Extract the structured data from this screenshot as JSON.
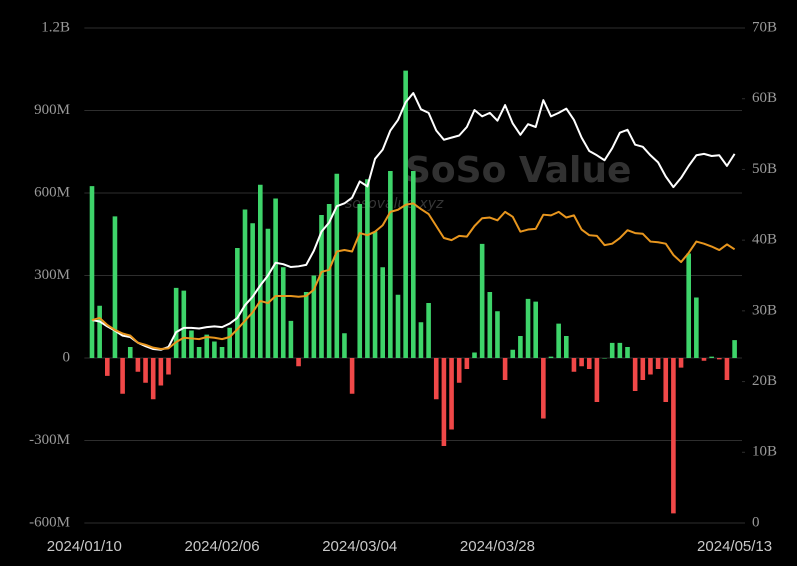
{
  "chart_data": {
    "type": "bar",
    "watermark": "SoSo Value",
    "watermark_subtitle": "sosovalue.xyz",
    "categories": [
      "2024/01/10",
      null,
      null,
      null,
      null,
      null,
      null,
      null,
      null,
      null,
      null,
      null,
      null,
      null,
      null,
      null,
      null,
      null,
      "2024/02/06",
      null,
      null,
      null,
      null,
      null,
      null,
      null,
      null,
      null,
      null,
      null,
      null,
      null,
      null,
      null,
      null,
      null,
      "2024/03/04",
      null,
      null,
      null,
      null,
      null,
      null,
      null,
      null,
      null,
      null,
      null,
      null,
      null,
      null,
      null,
      null,
      null,
      "2024/03/28",
      null,
      null,
      null,
      null,
      null,
      null,
      null,
      null,
      null,
      null,
      null,
      null,
      null,
      null,
      null,
      null,
      null,
      null,
      null,
      null,
      null,
      null,
      null,
      null,
      null,
      null,
      null,
      null,
      null,
      null,
      "2024/05/13"
    ],
    "series": [
      {
        "type": "bar",
        "color": "#3ed46a",
        "negative_color": "#f04848",
        "values": [
          null,
          625,
          190,
          -65,
          515,
          -130,
          40,
          -50,
          -90,
          -150,
          -100,
          -60,
          255,
          245,
          100,
          40,
          85,
          60,
          40,
          110,
          400,
          540,
          490,
          630,
          470,
          580,
          330,
          135,
          -30,
          240,
          300,
          520,
          560,
          670,
          90,
          -130,
          560,
          650,
          460,
          330,
          680,
          230,
          1045,
          680,
          130,
          200,
          -150,
          -320,
          -260,
          -90,
          -40,
          20,
          415,
          240,
          170,
          -80,
          30,
          80,
          215,
          205,
          -220,
          5,
          125,
          80,
          -50,
          -30,
          -40,
          -160,
          0,
          55,
          55,
          40,
          -120,
          -80,
          -60,
          -40,
          -160,
          -565,
          -35,
          380,
          220,
          -10,
          5,
          -5,
          -80,
          65
        ]
      },
      {
        "type": "line",
        "axis": "y2",
        "color": "#ffffff",
        "values": [
          null,
          28.7,
          28.5,
          27.8,
          27.2,
          26.5,
          26.3,
          25.5,
          25.0,
          24.6,
          24.5,
          24.9,
          27.0,
          27.6,
          27.6,
          27.5,
          27.7,
          27.8,
          27.7,
          28.2,
          29.0,
          30.8,
          32.0,
          33.6,
          35.0,
          36.8,
          36.6,
          36.2,
          36.3,
          36.5,
          38.5,
          41.2,
          42.5,
          44.8,
          45.2,
          46.0,
          48.3,
          47.6,
          51.5,
          52.8,
          55.5,
          57.0,
          59.5,
          60.8,
          58.5,
          58.0,
          55.5,
          54.2,
          54.5,
          54.8,
          56.0,
          58.4,
          57.5,
          58.0,
          56.9,
          59.1,
          56.5,
          54.9,
          56.4,
          56.0,
          59.8,
          57.5,
          58.0,
          58.6,
          57.0,
          54.5,
          52.6,
          52.0,
          51.3,
          53.0,
          55.2,
          55.6,
          53.5,
          53.2,
          52.0,
          51.0,
          49.0,
          47.5,
          48.8,
          50.5,
          52.0,
          52.2,
          51.9,
          52.0,
          50.5,
          52.2
        ]
      },
      {
        "type": "line",
        "axis": "y2",
        "color": "#e8961e",
        "values": [
          null,
          28.7,
          29.0,
          28.0,
          27.3,
          26.8,
          26.5,
          25.5,
          25.2,
          24.8,
          24.6,
          24.7,
          25.6,
          26.2,
          26.1,
          26.0,
          26.3,
          26.2,
          26.0,
          26.3,
          27.4,
          28.6,
          29.8,
          31.4,
          31.1,
          32.1,
          32.1,
          32.1,
          32.0,
          32.1,
          33.0,
          35.5,
          35.8,
          38.4,
          38.6,
          38.4,
          41.0,
          40.7,
          41.2,
          42.1,
          44.0,
          44.3,
          45.0,
          45.2,
          44.4,
          43.7,
          42.0,
          40.3,
          40.0,
          40.6,
          40.5,
          42.0,
          43.1,
          43.2,
          42.8,
          44.0,
          43.3,
          41.2,
          41.5,
          41.6,
          43.6,
          43.5,
          44.0,
          43.2,
          43.5,
          41.5,
          40.7,
          40.6,
          39.3,
          39.5,
          40.3,
          41.4,
          41.0,
          40.9,
          39.8,
          39.7,
          39.5,
          37.9,
          36.9,
          38.2,
          39.8,
          39.5,
          39.1,
          38.6,
          39.4,
          38.7
        ]
      }
    ],
    "ylim": [
      -600,
      1200
    ],
    "yticks": [
      {
        "value": -600,
        "label": "-600M"
      },
      {
        "value": -300,
        "label": "-300M"
      },
      0,
      {
        "value": 300,
        "label": "300M"
      },
      {
        "value": 600,
        "label": "600M"
      },
      {
        "value": 900,
        "label": "900M"
      },
      {
        "value": 1200,
        "label": "1.2B"
      }
    ],
    "y2lim": [
      0,
      70
    ],
    "y2ticks": [
      0,
      {
        "value": 10,
        "label": "10B"
      },
      {
        "value": 20,
        "label": "20B"
      },
      {
        "value": 30,
        "label": "30B"
      },
      {
        "value": 40,
        "label": "40B"
      },
      {
        "value": 50,
        "label": "50B"
      },
      {
        "value": 60,
        "label": "60B"
      },
      {
        "value": 70,
        "label": "70B"
      }
    ],
    "grid": true
  }
}
